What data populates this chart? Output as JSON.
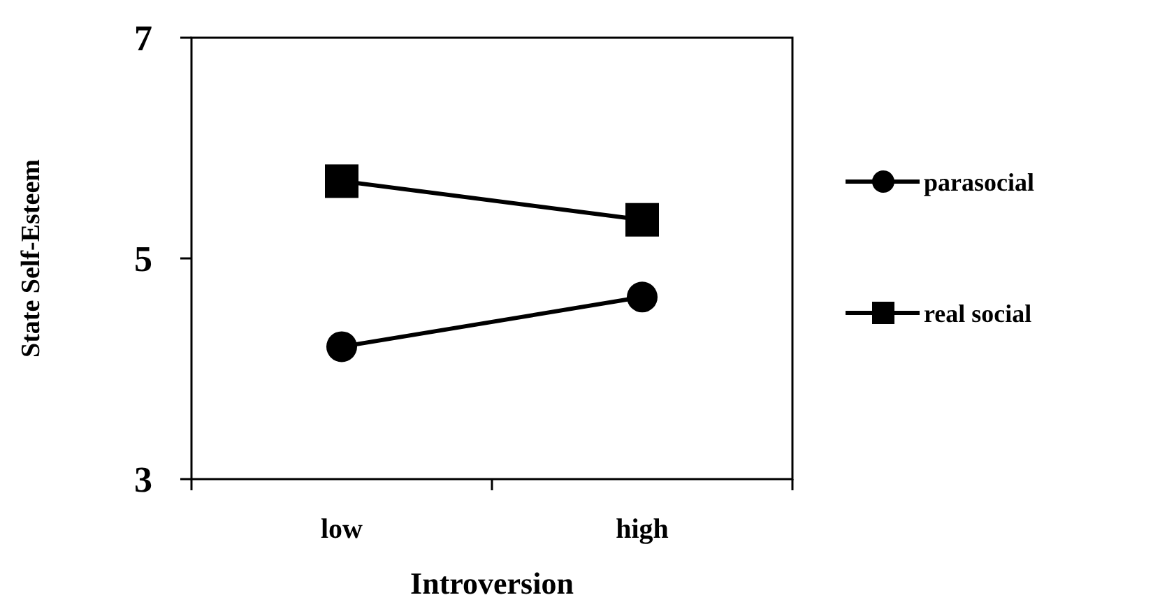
{
  "chart_data": {
    "type": "line",
    "xlabel": "Introversion",
    "ylabel": "State Self-Esteem",
    "categories": [
      "low",
      "high"
    ],
    "series": [
      {
        "name": "parasocial",
        "color": "#000000",
        "marker": "circle",
        "values": [
          4.2,
          4.65
        ]
      },
      {
        "name": "real social",
        "color": "#000000",
        "marker": "square",
        "values": [
          5.7,
          5.35
        ]
      }
    ],
    "ylim": [
      3,
      7
    ],
    "yticks": [
      3,
      5,
      7
    ],
    "grid": false,
    "legend": "right",
    "line_style": "solid"
  }
}
